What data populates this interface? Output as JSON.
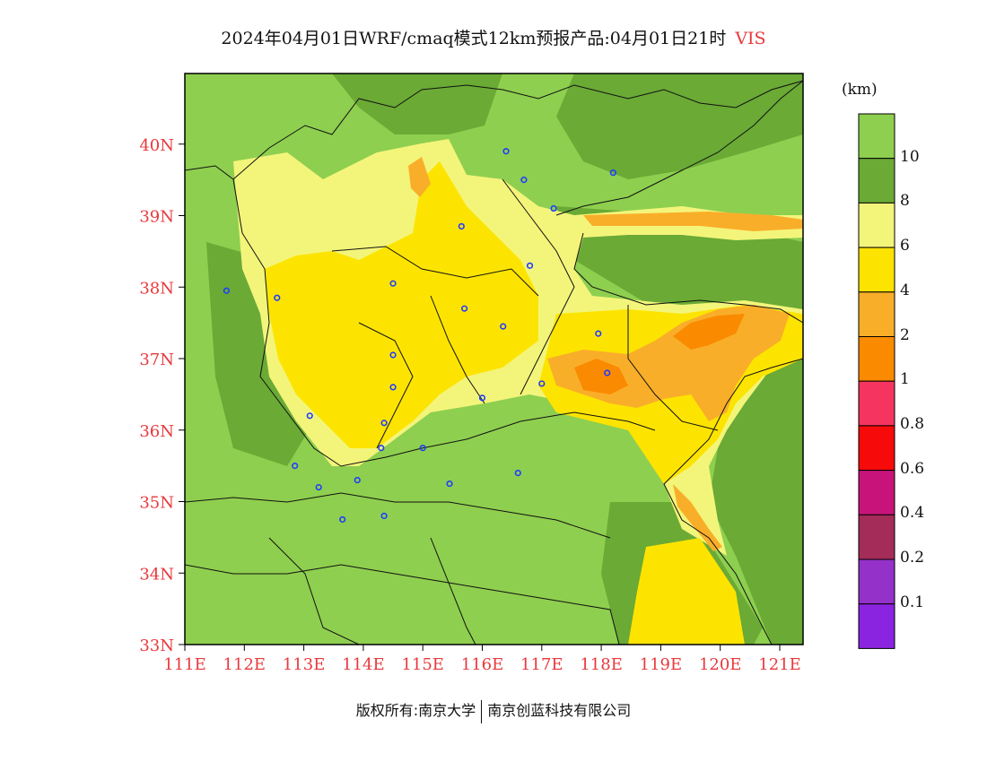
{
  "title": {
    "main": "2024年04月01日WRF/cmaq模式12km预报产品:04月01日21时",
    "variable": "VIS"
  },
  "axes": {
    "lat_ticks": [
      "33N",
      "34N",
      "35N",
      "36N",
      "37N",
      "38N",
      "39N",
      "40N"
    ],
    "lon_ticks": [
      "111E",
      "112E",
      "113E",
      "114E",
      "115E",
      "116E",
      "117E",
      "118E",
      "119E",
      "120E",
      "121E"
    ],
    "tick_color": "#e8393d"
  },
  "colorbar": {
    "unit": "(km)",
    "labels": [
      "10",
      "8",
      "6",
      "4",
      "2",
      "1",
      "0.8",
      "0.6",
      "0.4",
      "0.2",
      "0.1"
    ],
    "colors": [
      "#8ecf4f",
      "#6aaa35",
      "#f3f57a",
      "#fde400",
      "#f9ae2a",
      "#fa8a00",
      "#f53560",
      "#f70a0a",
      "#c8147a",
      "#a42c58",
      "#9431c8",
      "#8b24e0"
    ]
  },
  "cities": [
    {
      "lon": 116.4,
      "lat": 39.9
    },
    {
      "lon": 117.2,
      "lat": 39.1
    },
    {
      "lon": 114.5,
      "lat": 38.05
    },
    {
      "lon": 112.55,
      "lat": 37.85
    },
    {
      "lon": 118.1,
      "lat": 36.8
    },
    {
      "lon": 117.0,
      "lat": 36.65
    },
    {
      "lon": 113.65,
      "lat": 34.75
    },
    {
      "lon": 115.65,
      "lat": 38.85
    },
    {
      "lon": 118.2,
      "lat": 39.6
    },
    {
      "lon": 116.7,
      "lat": 39.5
    },
    {
      "lon": 116.8,
      "lat": 38.3
    },
    {
      "lon": 115.7,
      "lat": 37.7
    },
    {
      "lon": 116.35,
      "lat": 37.45
    },
    {
      "lon": 114.5,
      "lat": 37.05
    },
    {
      "lon": 114.5,
      "lat": 36.6
    },
    {
      "lon": 116.0,
      "lat": 36.45
    },
    {
      "lon": 114.35,
      "lat": 36.1
    },
    {
      "lon": 113.1,
      "lat": 36.2
    },
    {
      "lon": 111.7,
      "lat": 37.95
    },
    {
      "lon": 114.3,
      "lat": 35.75
    },
    {
      "lon": 115.0,
      "lat": 35.75
    },
    {
      "lon": 112.85,
      "lat": 35.5
    },
    {
      "lon": 113.25,
      "lat": 35.2
    },
    {
      "lon": 113.9,
      "lat": 35.3
    },
    {
      "lon": 115.45,
      "lat": 35.25
    },
    {
      "lon": 116.6,
      "lat": 35.4
    },
    {
      "lon": 114.35,
      "lat": 34.8
    },
    {
      "lon": 117.95,
      "lat": 37.35
    }
  ],
  "footer": {
    "left": "版权所有:南京大学",
    "right": "南京创蓝科技有限公司"
  }
}
